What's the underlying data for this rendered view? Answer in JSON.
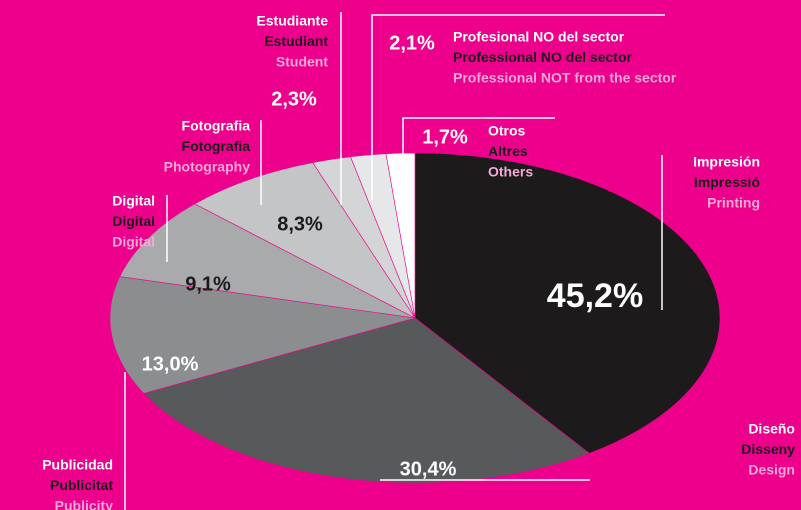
{
  "chart_data": {
    "type": "pie",
    "categories": [
      "Impresión",
      "Diseño",
      "Publicidad",
      "Digital",
      "Fotografia",
      "Estudiante",
      "Profesional NO del sector",
      "Otros"
    ],
    "categories_ca": [
      "Impressió",
      "Disseny",
      "Publicitat",
      "Digital",
      "Fotografia",
      "Estudiant",
      "Professional NO del sector",
      "Altres"
    ],
    "categories_en": [
      "Printing",
      "Design",
      "Publicity",
      "Digital",
      "Photography",
      "Student",
      "Professional NOT from the sector",
      "Others"
    ],
    "values": [
      45.2,
      30.4,
      13.0,
      9.1,
      8.3,
      2.3,
      2.1,
      1.7
    ],
    "value_labels": [
      "45,2%",
      "30,4%",
      "13,0%",
      "9,1%",
      "8,3%",
      "2,3%",
      "2,1%",
      "1,7%"
    ],
    "colors": [
      "#1c1a1b",
      "#58595b",
      "#8b8d8f",
      "#a8aaac",
      "#c4c5c7",
      "#d4d5d6",
      "#e6e7e8",
      "#ffffff"
    ],
    "background": "#ec008c"
  }
}
